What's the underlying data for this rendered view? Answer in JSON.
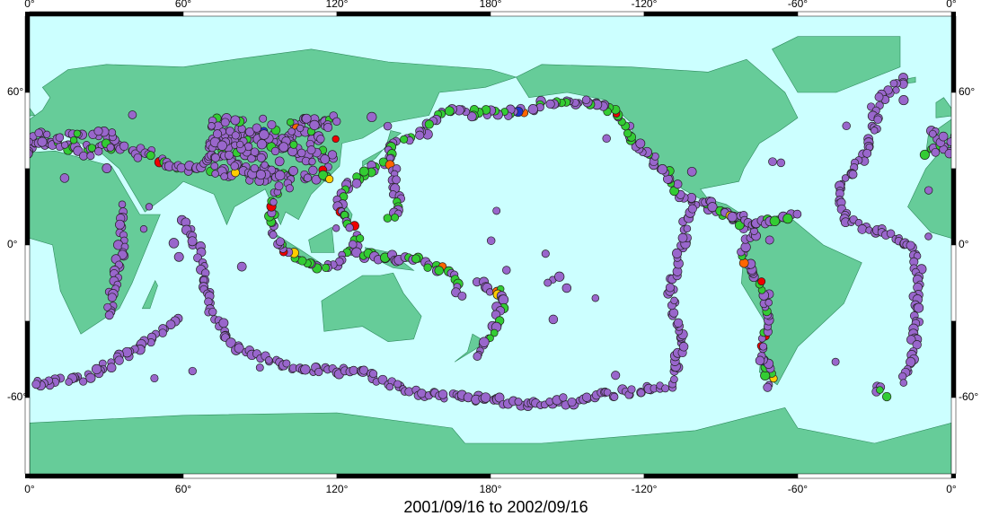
{
  "map": {
    "lon_labels": [
      "0°",
      "60°",
      "120°",
      "180°",
      "-120°",
      "-60°",
      "0°"
    ],
    "lat_labels": [
      "60°",
      "0°",
      "-60°"
    ],
    "caption": "2001/09/16 to 2002/09/16"
  }
}
